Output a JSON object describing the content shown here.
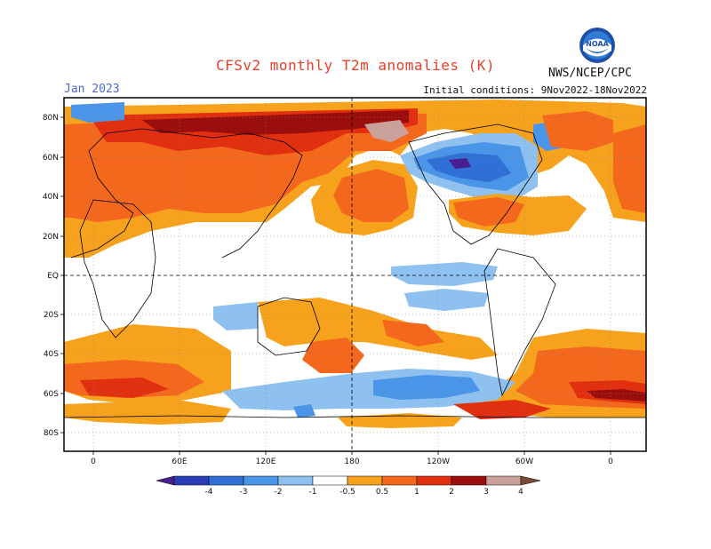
{
  "header": {
    "title": "CFSv2 monthly T2m anomalies (K)",
    "period": "Jan 2023",
    "initial_conditions": "Initial conditions: 9Nov2022-18Nov2022",
    "agency": "NWS/NCEP/CPC",
    "logo_text": "NOAA"
  },
  "axes": {
    "lat_labels": [
      "80N",
      "60N",
      "40N",
      "20N",
      "EQ",
      "20S",
      "40S",
      "60S",
      "80S"
    ],
    "lon_labels": [
      "0",
      "60E",
      "120E",
      "180",
      "120W",
      "60W",
      "0"
    ]
  },
  "colorbar": {
    "labels": [
      "-4",
      "-3",
      "-2",
      "-1",
      "-0.5",
      "0.5",
      "1",
      "2",
      "3",
      "4"
    ],
    "colors": {
      "lt_m4": "#4a1e8f",
      "m4_m3": "#2a3fb5",
      "m3_m2": "#2f6fd6",
      "m2_m1": "#4a95e8",
      "m1_m05": "#8ec1f0",
      "neutral": "#ffffff",
      "p05_p1": "#f7a21c",
      "p1_p2": "#f4681e",
      "p2_p3": "#e0300f",
      "p3_p4": "#9b0e0e",
      "p4_p5": "#c9a19a",
      "gt_p5": "#7a4a3a"
    }
  }
}
